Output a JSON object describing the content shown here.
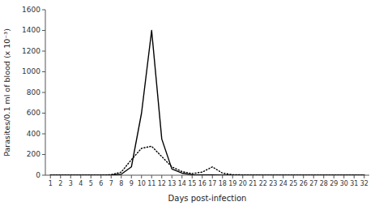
{
  "chart_data": {
    "type": "line",
    "xlabel": "Days post-infection",
    "ylabel": "Parasites/0.1 ml of blood (x 10⁻³)",
    "x": [
      1,
      2,
      3,
      4,
      5,
      6,
      7,
      8,
      9,
      10,
      11,
      12,
      13,
      14,
      15,
      16,
      17,
      18,
      19,
      20,
      21,
      22,
      23,
      24,
      25,
      26,
      27,
      28,
      29,
      30,
      31,
      32
    ],
    "series": [
      {
        "color": "#000000",
        "line_style": "solid",
        "values": [
          0,
          0,
          0,
          0,
          0,
          0,
          2,
          10,
          80,
          600,
          1400,
          350,
          60,
          20,
          5,
          3,
          2,
          1,
          1,
          1,
          0,
          0,
          0,
          0,
          0,
          0,
          0,
          0,
          0,
          0,
          0,
          0
        ]
      },
      {
        "color": "#000000",
        "line_style": "dotted",
        "values": [
          0,
          0,
          0,
          0,
          0,
          0,
          5,
          30,
          150,
          260,
          280,
          180,
          80,
          35,
          15,
          30,
          80,
          20,
          5,
          3,
          2,
          1,
          1,
          1,
          0,
          0,
          0,
          0,
          0,
          0,
          0,
          0
        ]
      }
    ],
    "xlim": [
      0.5,
      32.5
    ],
    "xticks": [
      1,
      2,
      3,
      4,
      5,
      6,
      7,
      8,
      9,
      10,
      11,
      12,
      13,
      14,
      15,
      16,
      17,
      18,
      19,
      20,
      21,
      22,
      23,
      24,
      25,
      26,
      27,
      28,
      29,
      30,
      31,
      32
    ],
    "ylim": [
      0,
      1600
    ],
    "yticks": [
      0,
      200,
      400,
      600,
      800,
      1000,
      1200,
      1400,
      1600
    ],
    "grid": false
  }
}
